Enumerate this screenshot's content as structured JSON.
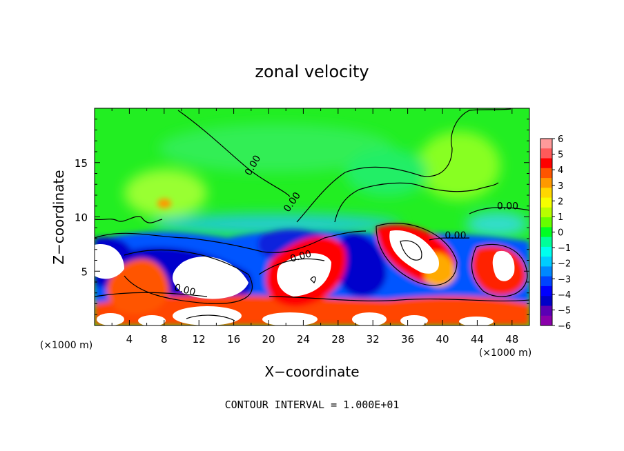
{
  "chart_data": {
    "type": "heatmap",
    "title": "zonal velocity",
    "xlabel": "X−coordinate",
    "ylabel": "Z−coordinate",
    "x_unit_left": "(×1000 m)",
    "x_unit_right": "(×1000 m)",
    "footer": "CONTOUR INTERVAL = 1.000E+01",
    "xlim": [
      0,
      50
    ],
    "ylim": [
      0,
      20
    ],
    "x_ticks": [
      4,
      8,
      12,
      16,
      20,
      24,
      28,
      32,
      36,
      40,
      44,
      48
    ],
    "y_ticks": [
      5,
      10,
      15
    ],
    "colorbar": {
      "ticks": [
        6,
        5,
        4,
        3,
        2,
        1,
        0,
        -1,
        -2,
        -3,
        -4,
        -5,
        -6
      ],
      "tick_labels": [
        "6",
        "5",
        "4",
        "3",
        "2",
        "1",
        "0",
        "−1",
        "−2",
        "−3",
        "−4",
        "−5",
        "−6"
      ],
      "colors": [
        "#ff9a9a",
        "#ff5a5a",
        "#ff0000",
        "#ff5500",
        "#ff9900",
        "#ffd700",
        "#f5ff00",
        "#b8ff00",
        "#66ff00",
        "#00ff22",
        "#00ff99",
        "#00ffee",
        "#00ccff",
        "#0088ff",
        "#0044ff",
        "#0000ff",
        "#0000c8",
        "#5a00b4",
        "#8a00aa"
      ],
      "range": [
        -6,
        6
      ]
    },
    "contour_labels": [
      {
        "text": "0.00",
        "x": 18.5,
        "z": 14.6,
        "angle": -60
      },
      {
        "text": "0.00",
        "x": 23.0,
        "z": 11.2,
        "angle": -55
      },
      {
        "text": "0.00",
        "x": 47.5,
        "z": 10.7,
        "angle": 0
      },
      {
        "text": "0.00",
        "x": 41.5,
        "z": 8.0,
        "angle": 0
      },
      {
        "text": "0.00",
        "x": 23.8,
        "z": 6.1,
        "angle": -15
      },
      {
        "text": "0.00",
        "x": 10.3,
        "z": 3.0,
        "angle": 15
      }
    ],
    "fields": {
      "background_value": 0.3,
      "features": [
        {
          "kind": "positive_core",
          "x": 8.2,
          "z": 11.3,
          "value": 1.5
        },
        {
          "kind": "positive_core",
          "x": 45.5,
          "z": 14.5,
          "value": 1.0
        },
        {
          "kind": "weak_negative",
          "x": 30.0,
          "z": 15.0,
          "value": -0.6
        },
        {
          "kind": "weak_negative",
          "x": 22.0,
          "z": 11.5,
          "value": -0.5
        },
        {
          "kind": "strong_negative",
          "x": 12.0,
          "z": 6.0,
          "value": -5.5
        },
        {
          "kind": "strong_negative",
          "x": 30.5,
          "z": 5.0,
          "value": -5.5
        },
        {
          "kind": "strong_negative",
          "x": 2.0,
          "z": 6.0,
          "value": -5.0
        },
        {
          "kind": "strong_positive",
          "x": 36.5,
          "z": 6.5,
          "value": 6.5
        },
        {
          "kind": "strong_positive",
          "x": 24.0,
          "z": 5.0,
          "value": 6.5
        },
        {
          "kind": "strong_positive",
          "x": 46.0,
          "z": 5.0,
          "value": 5.0
        },
        {
          "kind": "positive",
          "x": 6.0,
          "z": 3.5,
          "value": 4.0
        }
      ]
    }
  }
}
